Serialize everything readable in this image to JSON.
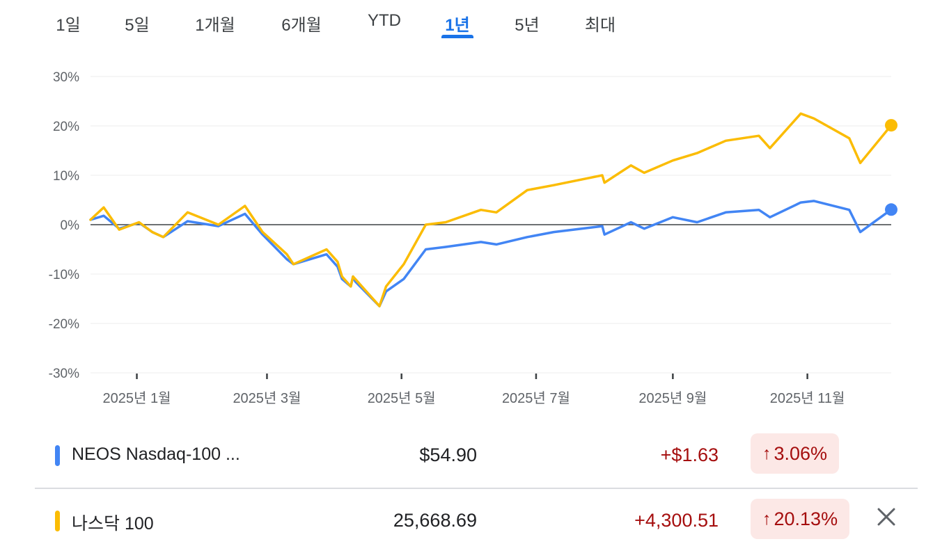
{
  "tabs": [
    {
      "label": "1일",
      "active": false
    },
    {
      "label": "5일",
      "active": false
    },
    {
      "label": "1개월",
      "active": false
    },
    {
      "label": "6개월",
      "active": false
    },
    {
      "label": "YTD",
      "active": false
    },
    {
      "label": "1년",
      "active": true
    },
    {
      "label": "5년",
      "active": false
    },
    {
      "label": "최대",
      "active": false
    }
  ],
  "colors": {
    "accent": "#1a73e8",
    "series_blue": "#4285f4",
    "series_yellow": "#fbbc04",
    "positive_text": "#a50e0e",
    "positive_bg": "#fce8e6"
  },
  "chart_data": {
    "type": "line",
    "title": "",
    "xlabel": "",
    "ylabel": "",
    "ylim": [
      -30,
      30
    ],
    "y_ticks": [
      "30%",
      "20%",
      "10%",
      "0%",
      "-10%",
      "-20%",
      "-30%"
    ],
    "y_tick_values": [
      30,
      20,
      10,
      0,
      -10,
      -20,
      -30
    ],
    "x_ticks": [
      "2025년 1월",
      "2025년 3월",
      "2025년 5월",
      "2025년 7월",
      "2025년 9월",
      "2025년 11월"
    ],
    "x_tick_dates": [
      "2025-01-01",
      "2025-03-01",
      "2025-05-01",
      "2025-07-01",
      "2025-09-01",
      "2025-11-01"
    ],
    "x_range": [
      "2024-12-11",
      "2025-12-09"
    ],
    "grid": true,
    "zero_line": true,
    "series": [
      {
        "name": "NEOS Nasdaq-100 ...",
        "color": "#4285f4",
        "x": [
          "2024-12-11",
          "2024-12-17",
          "2024-12-24",
          "2025-01-02",
          "2025-01-08",
          "2025-01-13",
          "2025-01-24",
          "2025-02-07",
          "2025-02-19",
          "2025-02-27",
          "2025-03-10",
          "2025-03-13",
          "2025-03-28",
          "2025-04-02",
          "2025-04-04",
          "2025-04-08",
          "2025-04-09",
          "2025-04-10",
          "2025-04-21",
          "2025-04-24",
          "2025-05-02",
          "2025-05-12",
          "2025-05-21",
          "2025-06-06",
          "2025-06-13",
          "2025-06-27",
          "2025-07-09",
          "2025-07-31",
          "2025-08-01",
          "2025-08-13",
          "2025-08-19",
          "2025-09-01",
          "2025-09-12",
          "2025-09-25",
          "2025-10-10",
          "2025-10-15",
          "2025-10-29",
          "2025-11-04",
          "2025-11-20",
          "2025-11-25",
          "2025-12-09"
        ],
        "values": [
          1.0,
          1.8,
          -0.8,
          0.4,
          -1.5,
          -2.5,
          0.7,
          -0.3,
          2.2,
          -2.0,
          -7.0,
          -8.0,
          -6.0,
          -8.5,
          -11.0,
          -12.5,
          -10.5,
          -11.5,
          -16.5,
          -13.5,
          -11.0,
          -5.0,
          -4.5,
          -3.5,
          -4.0,
          -2.5,
          -1.5,
          -0.3,
          -2.0,
          0.5,
          -0.8,
          1.5,
          0.5,
          2.5,
          3.0,
          1.5,
          4.5,
          4.8,
          3.0,
          -1.5,
          3.06
        ]
      },
      {
        "name": "나스닥 100",
        "color": "#fbbc04",
        "x": [
          "2024-12-11",
          "2024-12-17",
          "2024-12-24",
          "2025-01-02",
          "2025-01-08",
          "2025-01-13",
          "2025-01-24",
          "2025-02-07",
          "2025-02-19",
          "2025-02-27",
          "2025-03-10",
          "2025-03-13",
          "2025-03-28",
          "2025-04-02",
          "2025-04-04",
          "2025-04-08",
          "2025-04-09",
          "2025-04-10",
          "2025-04-21",
          "2025-04-24",
          "2025-05-02",
          "2025-05-12",
          "2025-05-21",
          "2025-06-06",
          "2025-06-13",
          "2025-06-27",
          "2025-07-09",
          "2025-07-31",
          "2025-08-01",
          "2025-08-13",
          "2025-08-19",
          "2025-09-01",
          "2025-09-12",
          "2025-09-25",
          "2025-10-10",
          "2025-10-15",
          "2025-10-29",
          "2025-11-04",
          "2025-11-20",
          "2025-11-25",
          "2025-12-09"
        ],
        "values": [
          1.0,
          3.5,
          -1.0,
          0.5,
          -1.5,
          -2.5,
          2.5,
          0.0,
          3.8,
          -1.5,
          -6.0,
          -8.0,
          -5.0,
          -7.5,
          -10.5,
          -12.5,
          -10.5,
          -11.0,
          -16.5,
          -12.5,
          -8.0,
          0.0,
          0.5,
          3.0,
          2.5,
          7.0,
          8.0,
          10.0,
          8.5,
          12.0,
          10.5,
          13.0,
          14.5,
          17.0,
          18.0,
          15.5,
          22.5,
          21.5,
          17.5,
          12.5,
          20.13
        ]
      }
    ]
  },
  "rows": [
    {
      "name": "NEOS Nasdaq-100 ...",
      "price": "$54.90",
      "change": "+$1.63",
      "pct": "3.06%",
      "color": "#4285f4",
      "arrow": "↑"
    },
    {
      "name": "나스닥 100",
      "price": "25,668.69",
      "change": "+4,300.51",
      "pct": "20.13%",
      "color": "#fbbc04",
      "arrow": "↑"
    }
  ],
  "close_icon": "close-icon"
}
